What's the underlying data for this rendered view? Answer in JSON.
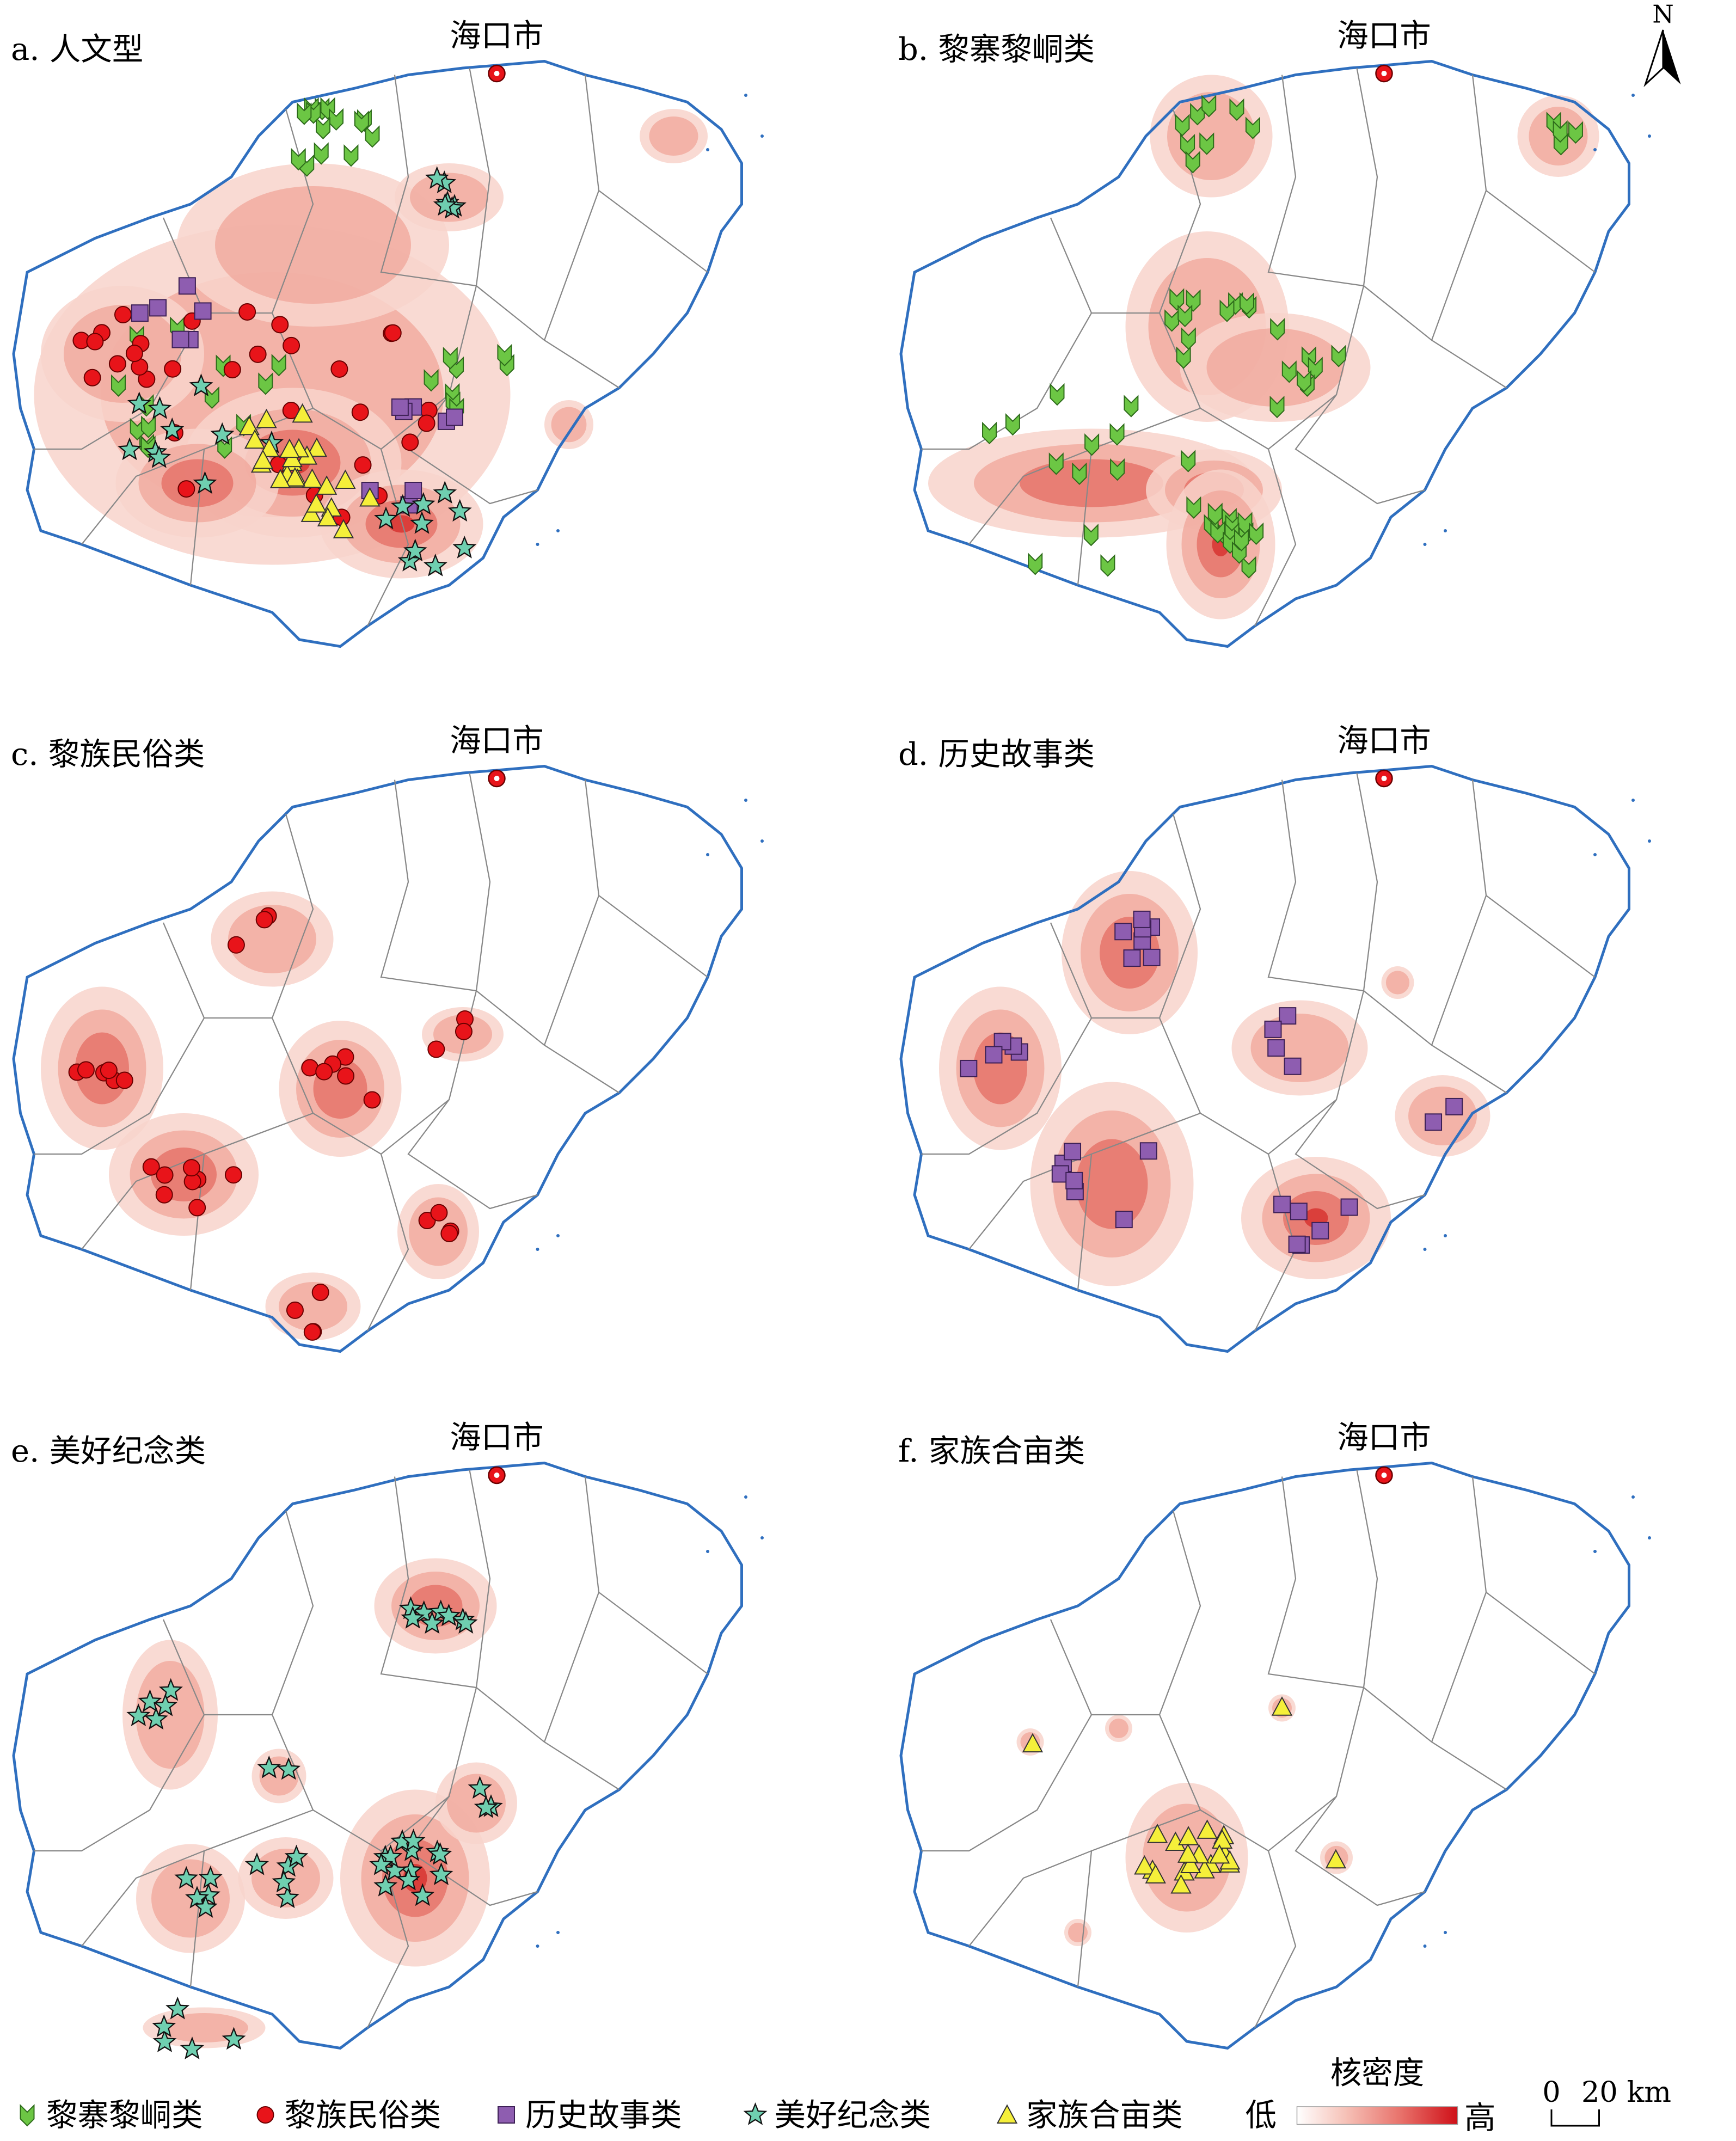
{
  "panels": [
    {
      "label": "a. 人文型",
      "city": "海口市"
    },
    {
      "label": "b. 黎寨黎峒类",
      "city": "海口市"
    },
    {
      "label": "c. 黎族民俗类",
      "city": "海口市"
    },
    {
      "label": "d. 历史故事类",
      "city": "海口市"
    },
    {
      "label": "e. 美好纪念类",
      "city": "海口市"
    },
    {
      "label": "f. 家族合亩类",
      "city": "海口市"
    }
  ],
  "north": "N",
  "legend": {
    "items": [
      "黎寨黎峒类",
      "黎族民俗类",
      "历史故事类",
      "美好纪念类",
      "家族合亩类"
    ],
    "density_title": "核密度",
    "low": "低",
    "high": "高",
    "scale_start": "0",
    "scale_end": "20 km"
  }
}
